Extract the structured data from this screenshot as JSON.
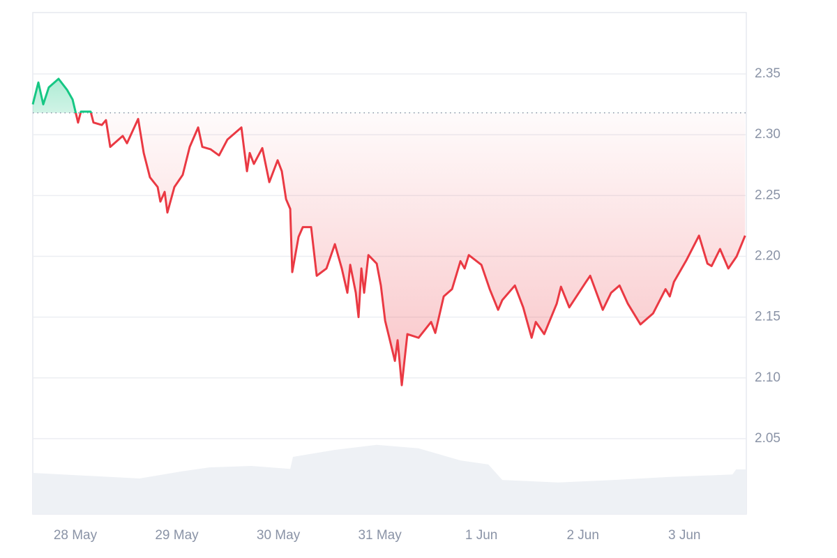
{
  "chart_data": {
    "type": "line",
    "xlim": [
      -0.419,
      6.61
    ],
    "ylim": [
      1.988,
      2.4005
    ],
    "xticks": [
      {
        "value": 0,
        "label": "28 May"
      },
      {
        "value": 1,
        "label": "29 May"
      },
      {
        "value": 2,
        "label": "30 May"
      },
      {
        "value": 3,
        "label": "31 May"
      },
      {
        "value": 4,
        "label": "1 Jun"
      },
      {
        "value": 5,
        "label": "2 Jun"
      },
      {
        "value": 6,
        "label": "3 Jun"
      }
    ],
    "yticks": [
      2.05,
      {
        "value": 2.1,
        "label": "2.10"
      },
      2.15,
      {
        "value": 2.2,
        "label": "2.20"
      },
      2.25,
      {
        "value": 2.3,
        "label": "2.30"
      },
      2.35
    ],
    "grid": true,
    "baseline": 2.318,
    "up_color": "#16c784",
    "down_color": "#ea3943",
    "x": [
      -0.419,
      -0.364,
      -0.316,
      -0.261,
      -0.165,
      -0.082,
      -0.027,
      0.027,
      0.055,
      0.151,
      0.179,
      0.261,
      0.302,
      0.344,
      0.467,
      0.509,
      0.619,
      0.674,
      0.735,
      0.811,
      0.838,
      0.88,
      0.907,
      0.976,
      1.058,
      1.127,
      1.21,
      1.251,
      1.333,
      1.416,
      1.498,
      1.636,
      1.663,
      1.691,
      1.718,
      1.759,
      1.842,
      1.911,
      1.993,
      2.034,
      2.076,
      2.117,
      2.137,
      2.199,
      2.241,
      2.323,
      2.378,
      2.474,
      2.557,
      2.625,
      2.68,
      2.708,
      2.763,
      2.79,
      2.818,
      2.845,
      2.887,
      2.969,
      3.01,
      3.052,
      3.093,
      3.148,
      3.175,
      3.216,
      3.271,
      3.381,
      3.505,
      3.546,
      3.629,
      3.711,
      3.794,
      3.835,
      3.876,
      4.0,
      4.082,
      4.165,
      4.206,
      4.33,
      4.412,
      4.495,
      4.536,
      4.619,
      4.742,
      4.784,
      4.866,
      5.031,
      5.072,
      5.196,
      5.278,
      5.361,
      5.443,
      5.567,
      5.691,
      5.814,
      5.856,
      5.897,
      6.021,
      6.144,
      6.227,
      6.268,
      6.351,
      6.433,
      6.515,
      6.598
    ],
    "values": [
      2.325,
      2.343,
      2.325,
      2.339,
      2.346,
      2.337,
      2.329,
      2.31,
      2.319,
      2.319,
      2.31,
      2.308,
      2.312,
      2.29,
      2.299,
      2.293,
      2.313,
      2.285,
      2.265,
      2.257,
      2.245,
      2.253,
      2.236,
      2.257,
      2.267,
      2.29,
      2.306,
      2.29,
      2.288,
      2.283,
      2.296,
      2.306,
      2.288,
      2.27,
      2.285,
      2.276,
      2.289,
      2.261,
      2.279,
      2.27,
      2.247,
      2.239,
      2.187,
      2.216,
      2.224,
      2.224,
      2.184,
      2.19,
      2.21,
      2.19,
      2.17,
      2.193,
      2.17,
      2.15,
      2.19,
      2.17,
      2.201,
      2.194,
      2.176,
      2.147,
      2.133,
      2.114,
      2.131,
      2.094,
      2.136,
      2.133,
      2.146,
      2.137,
      2.167,
      2.173,
      2.196,
      2.19,
      2.201,
      2.193,
      2.173,
      2.156,
      2.164,
      2.176,
      2.158,
      2.133,
      2.146,
      2.136,
      2.161,
      2.175,
      2.158,
      2.179,
      2.184,
      2.156,
      2.17,
      2.176,
      2.161,
      2.144,
      2.153,
      2.173,
      2.167,
      2.179,
      2.197,
      2.217,
      2.194,
      2.192,
      2.206,
      2.19,
      2.2,
      2.217
    ],
    "y2lim": [
      0,
      100
    ],
    "volume": {
      "color": "#eef1f5",
      "x": [
        -0.419,
        0.632,
        1.045,
        1.32,
        1.732,
        2.117,
        2.144,
        2.557,
        2.969,
        3.381,
        3.794,
        4.069,
        4.206,
        4.756,
        5.306,
        5.855,
        6.474,
        6.509,
        6.61
      ],
      "values": [
        8.2,
        7.1,
        8.5,
        9.3,
        9.6,
        9.0,
        11.4,
        12.8,
        13.8,
        13.1,
        10.7,
        9.9,
        6.8,
        6.3,
        6.8,
        7.4,
        7.9,
        8.9,
        8.9
      ]
    }
  }
}
